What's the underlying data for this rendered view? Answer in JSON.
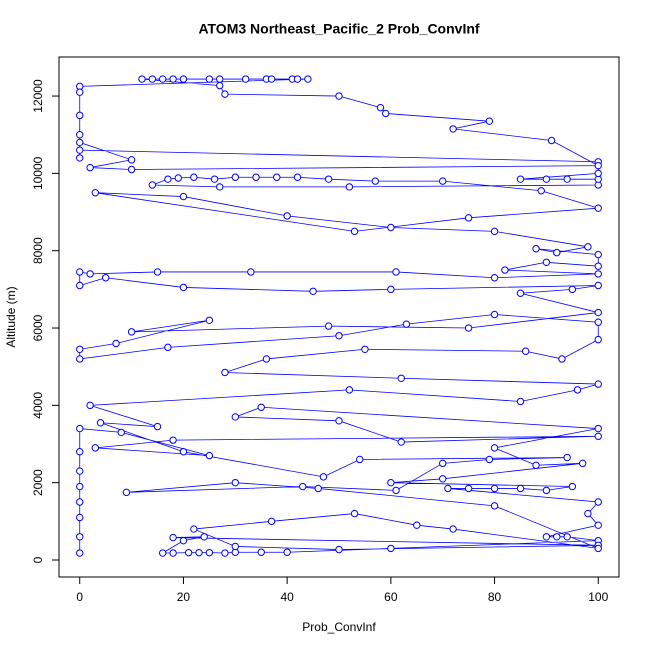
{
  "chart_data": {
    "type": "line",
    "title": "ATOM3 Northeast_Pacific_2 Prob_ConvInf",
    "xlabel": "Prob_ConvInf",
    "ylabel": "Altitude (m)",
    "xlim": [
      -4,
      104
    ],
    "ylim": [
      -440,
      13010
    ],
    "xticks": [
      0,
      20,
      40,
      60,
      80,
      100
    ],
    "yticks": [
      0,
      2000,
      4000,
      6000,
      8000,
      10000,
      12000
    ],
    "color": "#0000ff",
    "x": [
      0,
      0,
      0,
      0,
      0,
      0,
      0,
      0,
      8,
      25,
      3,
      18,
      100,
      62,
      50,
      30,
      35,
      100,
      80,
      88,
      97,
      70,
      60,
      95,
      90,
      85,
      80,
      75,
      71,
      100,
      98,
      100,
      90,
      92,
      94,
      100,
      60,
      40,
      35,
      30,
      28,
      25,
      23,
      21,
      18,
      16,
      20,
      24,
      18,
      100,
      50,
      30,
      22,
      37,
      53,
      65,
      72,
      100,
      80,
      46,
      30,
      9,
      43,
      61,
      70,
      79,
      94,
      54,
      47,
      20,
      4,
      15,
      2,
      52,
      85,
      96,
      100,
      62,
      28,
      36,
      55,
      86,
      93,
      100,
      100,
      80,
      63,
      50,
      17,
      0,
      0,
      7,
      25,
      10,
      48,
      75,
      100,
      85,
      95,
      100,
      60,
      45,
      20,
      5,
      0,
      0,
      2,
      15,
      33,
      61,
      80,
      100,
      82,
      90,
      100,
      100,
      88,
      92,
      98,
      80,
      60,
      40,
      20,
      3,
      53,
      75,
      100,
      89,
      70,
      57,
      48,
      42,
      38,
      34,
      30,
      26,
      22,
      19,
      17,
      14,
      27,
      52,
      100,
      100,
      94,
      90,
      85,
      100,
      100,
      0,
      0,
      10,
      2,
      10,
      100,
      91,
      72,
      79,
      59,
      58,
      50,
      28,
      27,
      12,
      14,
      16,
      18,
      20,
      25,
      27,
      32,
      36,
      37,
      41,
      42,
      44,
      0,
      0,
      0,
      0,
      0
    ],
    "y": [
      180,
      600,
      1100,
      1500,
      1900,
      2300,
      2800,
      3400,
      3300,
      2700,
      2900,
      3100,
      3200,
      3050,
      3600,
      3700,
      3950,
      3400,
      2900,
      2450,
      2500,
      2100,
      2000,
      1900,
      1800,
      1850,
      1850,
      1850,
      1850,
      1500,
      1200,
      900,
      600,
      600,
      600,
      500,
      300,
      200,
      200,
      200,
      180,
      190,
      190,
      190,
      180,
      180,
      500,
      600,
      580,
      380,
      270,
      350,
      800,
      1000,
      1200,
      900,
      800,
      300,
      1400,
      1850,
      2000,
      1750,
      1900,
      1800,
      2500,
      2600,
      2650,
      2600,
      2150,
      2800,
      3550,
      3450,
      4000,
      4400,
      4100,
      4400,
      4550,
      4700,
      4850,
      5200,
      5450,
      5400,
      5200,
      5700,
      6150,
      6350,
      6100,
      5800,
      5500,
      5200,
      5450,
      5600,
      6200,
      5900,
      6050,
      6000,
      6400,
      6900,
      7000,
      7100,
      7000,
      6950,
      7050,
      7300,
      7100,
      7450,
      7400,
      7450,
      7450,
      7450,
      7300,
      7400,
      7500,
      7700,
      7600,
      7900,
      8050,
      7950,
      8100,
      8500,
      8600,
      8900,
      9400,
      9500,
      8500,
      8850,
      9100,
      9550,
      9800,
      9800,
      9850,
      9900,
      9900,
      9900,
      9900,
      9850,
      9900,
      9880,
      9850,
      9700,
      9650,
      9650,
      9700,
      9850,
      9850,
      9850,
      9850,
      10000,
      10300,
      10600,
      10800,
      10350,
      10150,
      10100,
      10200,
      10850,
      11150,
      11350,
      11550,
      11700,
      12000,
      12050,
      12270,
      12440,
      12440,
      12440,
      12440,
      12440,
      12440,
      12440,
      12440,
      12440,
      12440,
      12440,
      12440,
      12440,
      12250,
      12100,
      11500,
      11000,
      10400
    ]
  }
}
